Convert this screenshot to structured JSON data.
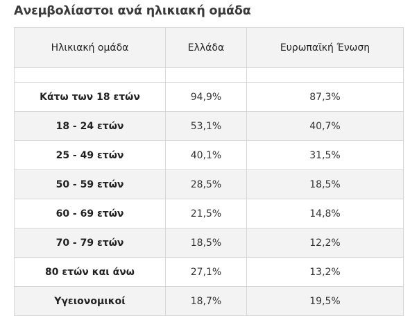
{
  "title": "Ανεμβολίαστοι ανά ηλικιακή ομάδα",
  "table": {
    "headers": [
      "Ηλικιακή ομάδα",
      "Ελλάδα",
      "Ευρωπαϊκή Ένωση"
    ],
    "rows": [
      {
        "group": "Κάτω των 18 ετών",
        "greece": "94,9%",
        "eu": "87,3%"
      },
      {
        "group": "18 - 24 ετών",
        "greece": "53,1%",
        "eu": "40,7%"
      },
      {
        "group": "25 - 49 ετών",
        "greece": "40,1%",
        "eu": "31,5%"
      },
      {
        "group": "50 - 59 ετών",
        "greece": "28,5%",
        "eu": "18,5%"
      },
      {
        "group": "60 - 69 ετών",
        "greece": "21,5%",
        "eu": "14,8%"
      },
      {
        "group": "70 - 79 ετών",
        "greece": "18,5%",
        "eu": "12,2%"
      },
      {
        "group": "80 ετών και άνω",
        "greece": "27,1%",
        "eu": "13,2%"
      },
      {
        "group": "Υγειονομικοί",
        "greece": "18,7%",
        "eu": "19,5%"
      }
    ]
  }
}
